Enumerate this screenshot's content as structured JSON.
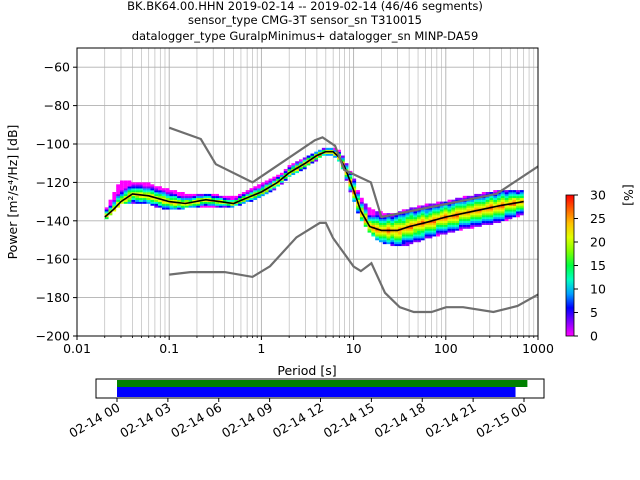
{
  "title_lines": [
    "BK.BK64.00.HHN   2019-02-14 -- 2019-02-14  (46/46 segments)",
    "sensor_type CMG-3T sensor_sn T310015",
    "datalogger_type GuralpMinimus+ datalogger_sn MINP-DA59"
  ],
  "chart_data": [
    {
      "type": "heatmap",
      "xlabel": "Period [s]",
      "ylabel": "Power [m²/s⁴/Hz] [dB]",
      "xscale": "log",
      "xlim": [
        0.01,
        1000
      ],
      "ylim": [
        -200,
        -50
      ],
      "xticks": [
        0.01,
        0.1,
        1,
        10,
        100,
        1000
      ],
      "xtick_labels": [
        "0.01",
        "0.1",
        "1",
        "10",
        "100",
        "1000"
      ],
      "yticks": [
        -200,
        -180,
        -160,
        -140,
        -120,
        -100,
        -80,
        -60
      ],
      "ytick_labels": [
        "−200",
        "−180",
        "−160",
        "−140",
        "−120",
        "−100",
        "−80",
        "−60"
      ],
      "grid": true,
      "colorbar": {
        "label": "[%]",
        "range": [
          0,
          30
        ],
        "ticks": [
          "0",
          "5",
          "10",
          "15",
          "20",
          "25",
          "30"
        ],
        "colormap": [
          "#ff00ff",
          "#8000ff",
          "#0000ff",
          "#00a0ff",
          "#00ffc0",
          "#00ff40",
          "#80ff00",
          "#e0ff00",
          "#ffc000",
          "#ff6000",
          "#ff0000"
        ]
      },
      "series": [
        {
          "role": "mean",
          "color": "#000000",
          "x": [
            0.02,
            0.025,
            0.03,
            0.04,
            0.06,
            0.1,
            0.15,
            0.25,
            0.35,
            0.5,
            0.7,
            1,
            1.5,
            2,
            3,
            4,
            5,
            6,
            7,
            8,
            10,
            12,
            15,
            20,
            30,
            40,
            60,
            100,
            200,
            400,
            700
          ],
          "y": [
            -138,
            -134,
            -130,
            -126,
            -127,
            -130,
            -131,
            -129,
            -130,
            -131,
            -128,
            -125,
            -120,
            -115,
            -110,
            -106,
            -104,
            -104,
            -107,
            -112,
            -124,
            -135,
            -143,
            -145,
            -145,
            -143,
            -141,
            -138,
            -135,
            -132,
            -130
          ]
        },
        {
          "role": "high noise model",
          "color": "#6e6e6e",
          "x": [
            0.1,
            0.22,
            0.32,
            0.8,
            3.8,
            4.6,
            6.3,
            7.9,
            15.4,
            20,
            354.8,
            10000
          ],
          "y": [
            -91.5,
            -97.4,
            -110.5,
            -120,
            -98,
            -96.5,
            -101,
            -113.5,
            -120,
            -138,
            -126,
            -80
          ]
        },
        {
          "role": "low noise model",
          "color": "#6e6e6e",
          "x": [
            0.1,
            0.17,
            0.4,
            0.8,
            1.24,
            2.4,
            4.3,
            5,
            6,
            10,
            12,
            15.6,
            21.9,
            31.6,
            45,
            70,
            101,
            154,
            328,
            600,
            10000
          ],
          "y": [
            -168,
            -166.7,
            -166.7,
            -169.2,
            -163.7,
            -148.6,
            -141.1,
            -141.1,
            -149,
            -163.8,
            -166.2,
            -162.1,
            -177.5,
            -185,
            -187.5,
            -187.5,
            -185,
            -185,
            -187.5,
            -184.4,
            -151.5
          ]
        }
      ],
      "psd_cloud": {
        "x": [
          0.02,
          0.03,
          0.04,
          0.06,
          0.1,
          0.15,
          0.25,
          0.35,
          0.5,
          0.7,
          1,
          1.5,
          2,
          3,
          4,
          5,
          6,
          7,
          8,
          10,
          12,
          15,
          20,
          30,
          40,
          60,
          100,
          200,
          400,
          700
        ],
        "low": [
          -141,
          -132,
          -131,
          -132,
          -135,
          -134,
          -133,
          -133,
          -133,
          -131,
          -128,
          -123,
          -118,
          -113,
          -109,
          -106,
          -106,
          -110,
          -116,
          -130,
          -140,
          -147,
          -152,
          -154,
          -153,
          -150,
          -147,
          -144,
          -141,
          -137
        ],
        "high": [
          -135,
          -119,
          -120,
          -121,
          -124,
          -126,
          -126,
          -127,
          -128,
          -125,
          -121,
          -117,
          -112,
          -107,
          -104,
          -102,
          -102,
          -104,
          -108,
          -118,
          -128,
          -134,
          -136,
          -136,
          -134,
          -132,
          -130,
          -127,
          -124,
          -124
        ]
      }
    },
    {
      "type": "timeline",
      "xlim": [
        "02-14 00",
        "02-15 01"
      ],
      "xtick_labels": [
        "02-14 00",
        "02-14 03",
        "02-14 06",
        "02-14 09",
        "02-14 12",
        "02-14 15",
        "02-14 18",
        "02-14 21",
        "02-15 00"
      ],
      "bars": [
        {
          "role": "data available",
          "color": "#008000",
          "start_hours": 0,
          "end_hours": 24.2
        },
        {
          "role": "PSD segments used",
          "color": "#0000ff",
          "start_hours": 0,
          "end_hours": 23.5
        }
      ]
    }
  ]
}
